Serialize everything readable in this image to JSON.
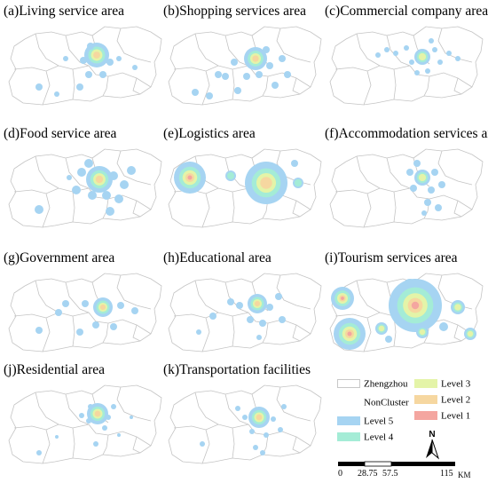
{
  "panels": [
    {
      "title": "(a)Living service area"
    },
    {
      "title": "(b)Shopping services area"
    },
    {
      "title": "(c)Commercial company area"
    },
    {
      "title": "(d)Food service area"
    },
    {
      "title": "(e)Logistics area"
    },
    {
      "title": "(f)Accommodation services area"
    },
    {
      "title": "(g)Government area"
    },
    {
      "title": "(h)Educational area"
    },
    {
      "title": "(i)Tourism services area"
    },
    {
      "title": "(j)Residential area"
    },
    {
      "title": "(k)Transportation facilities"
    }
  ],
  "legend": {
    "items": [
      {
        "label": "Zhengzhou",
        "color": "#ffffff",
        "border": "#c8c8c8"
      },
      {
        "label": "NonCluster",
        "color": "#ffffff",
        "border": "#ffffff"
      },
      {
        "label": "Level 5",
        "color": "#a6d4f2",
        "border": "#a6d4f2"
      },
      {
        "label": "Level 4",
        "color": "#a4ecd6",
        "border": "#a4ecd6"
      },
      {
        "label": "Level 3",
        "color": "#e4f4a8",
        "border": "#e4f4a8"
      },
      {
        "label": "Level 2",
        "color": "#f6d7a0",
        "border": "#f6d7a0"
      },
      {
        "label": "Level 1",
        "color": "#f4a6a0",
        "border": "#f4a6a0"
      }
    ]
  },
  "north_arrow": {
    "label": "N"
  },
  "scale": {
    "ticks": [
      "0",
      "28.75",
      "57.5",
      "115"
    ],
    "unit": "KM"
  }
}
